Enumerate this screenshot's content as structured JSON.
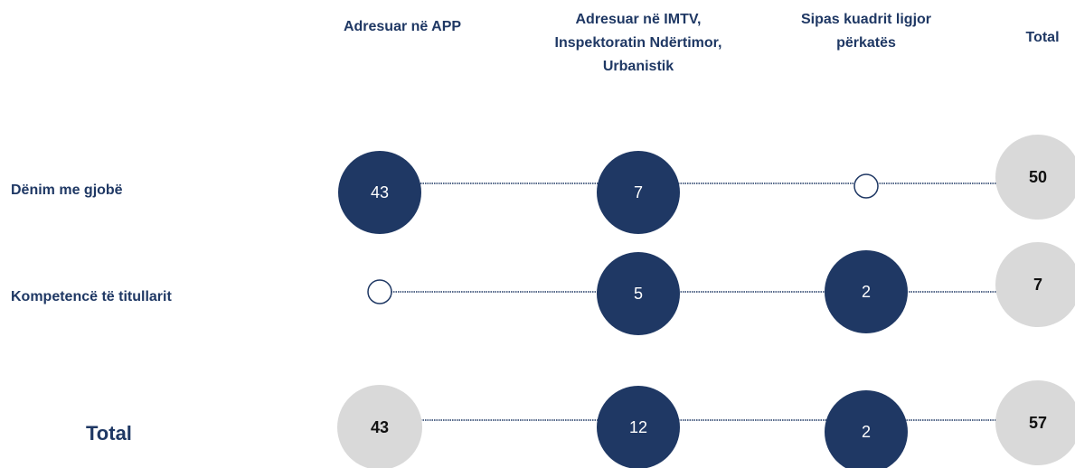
{
  "columns": [
    "Adresuar në APP",
    "Adresuar në IMTV, Inspektoratin Ndërtimor, Urbanistik",
    "Sipas kuadrit ligjor përkatës",
    "Total"
  ],
  "rows": [
    {
      "label": "Dënim me gjobë",
      "values": [
        43,
        7,
        null,
        50
      ]
    },
    {
      "label": "Kompetencë të titullarit",
      "values": [
        null,
        5,
        2,
        7
      ]
    },
    {
      "label": "Total",
      "values": [
        43,
        12,
        2,
        57
      ]
    }
  ]
}
